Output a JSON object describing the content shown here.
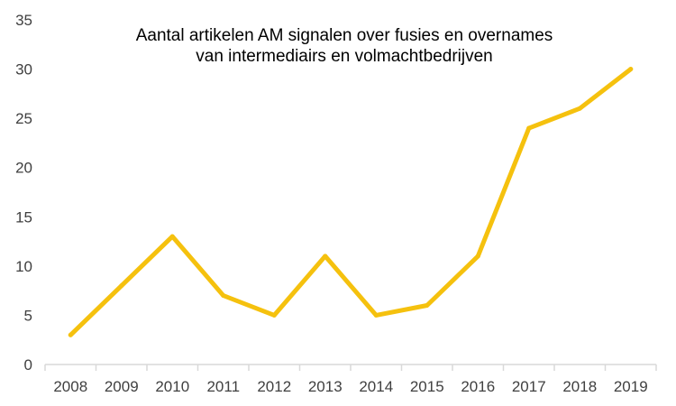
{
  "chart_data": {
    "type": "line",
    "title_lines": [
      "Aantal artikelen AM signalen over fusies en overnames",
      "van intermediairs en volmachtbedrijven"
    ],
    "xlabel": "",
    "ylabel": "",
    "categories": [
      "2008",
      "2009",
      "2010",
      "2011",
      "2012",
      "2013",
      "2014",
      "2015",
      "2016",
      "2017",
      "2018",
      "2019"
    ],
    "series": [
      {
        "values": [
          3,
          8,
          13,
          7,
          5,
          11,
          5,
          6,
          11,
          24,
          26,
          30
        ],
        "color": "#F5C10E"
      }
    ],
    "ylim": [
      0,
      35
    ],
    "yticks": [
      0,
      5,
      10,
      15,
      20,
      25,
      30,
      35
    ],
    "grid": false,
    "legend": "none",
    "axis_color": "#D9D9D9"
  }
}
